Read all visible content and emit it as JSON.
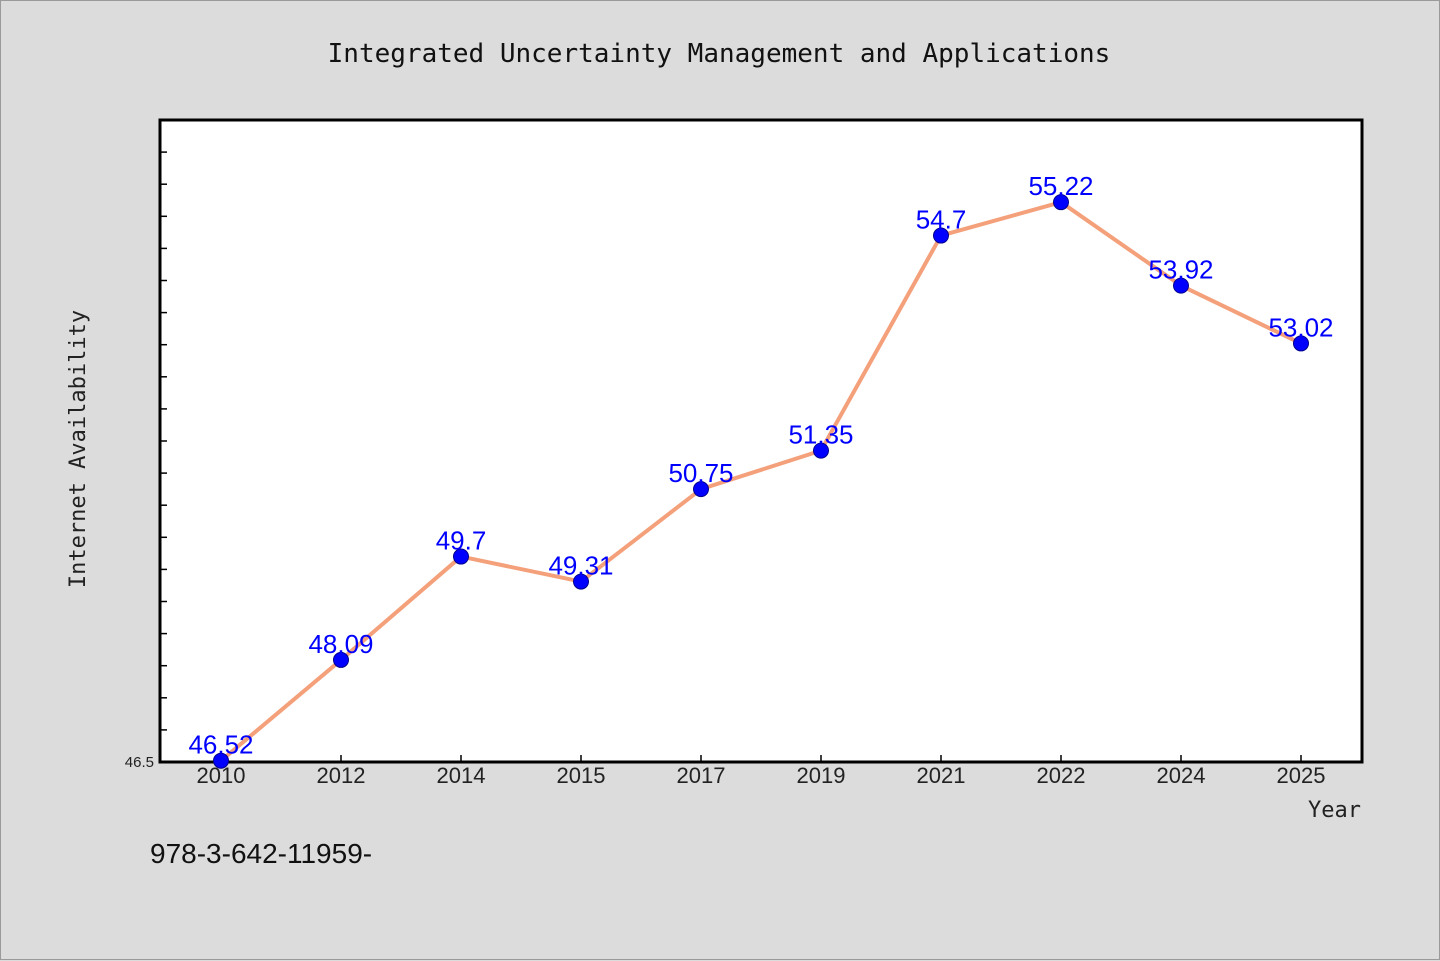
{
  "chart_data": {
    "type": "line",
    "title": "Integrated Uncertainty Management and Applications",
    "xlabel": "Year",
    "ylabel": "Internet Availability",
    "categories": [
      "2010",
      "2012",
      "2014",
      "2015",
      "2017",
      "2019",
      "2021",
      "2022",
      "2024",
      "2025"
    ],
    "series": [
      {
        "values": [
          46.52,
          48.09,
          49.7,
          49.31,
          50.75,
          51.35,
          54.7,
          55.22,
          53.92,
          53.02
        ],
        "data_labels": [
          "46.52",
          "48.09",
          "49.7",
          "49.31",
          "50.75",
          "51.35",
          "54.7",
          "55.22",
          "53.92",
          "53.02"
        ]
      }
    ],
    "ylim": [
      46.5,
      56.5
    ],
    "y_min_label": "46.5",
    "grid": false,
    "colors": {
      "line": "#f4a07a",
      "marker": "#0000ff",
      "data_label": "#0000ff",
      "background": "#dcdcdc",
      "plot_area": "#ffffff"
    }
  },
  "footer_text": "978-3-642-11959-"
}
